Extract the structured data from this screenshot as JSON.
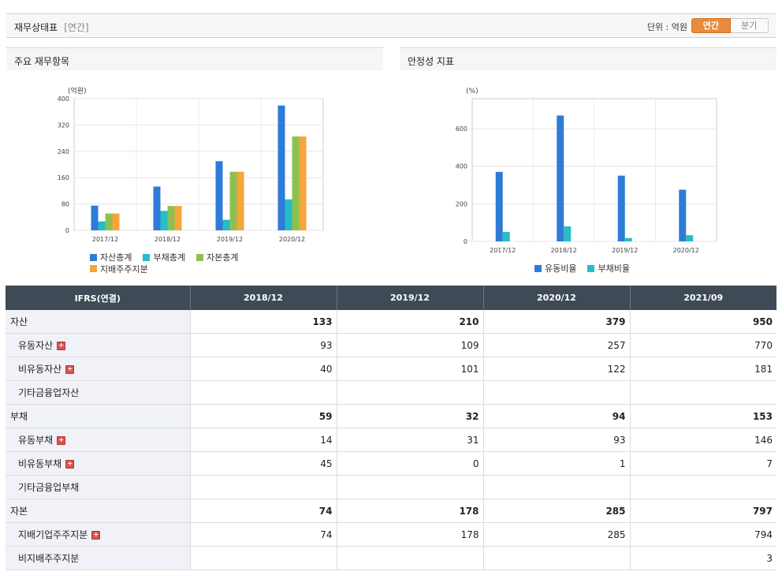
{
  "header": {
    "title": "재무상태표",
    "subtitle": "[연간]",
    "unit_label": "단위 : 억원",
    "toggle_annual": "연간",
    "toggle_quarter": "분기"
  },
  "panels": {
    "left_title": "주요 재무항목",
    "right_title": "안정성 지표"
  },
  "colors": {
    "blue": "#2f7bd8",
    "teal": "#26bcc8",
    "green": "#8cc152",
    "orange": "#f5a63a"
  },
  "chart_data": [
    {
      "type": "bar",
      "title": "",
      "ylabel": "(억원)",
      "categories": [
        "2017/12",
        "2018/12",
        "2019/12",
        "2020/12"
      ],
      "yticks": [
        0,
        80,
        160,
        240,
        320,
        400
      ],
      "ylim": [
        0,
        400
      ],
      "series": [
        {
          "name": "자산총계",
          "color": "#2f7bd8",
          "values": [
            75,
            133,
            210,
            379
          ]
        },
        {
          "name": "부채총계",
          "color": "#26bcc8",
          "values": [
            27,
            59,
            32,
            94
          ]
        },
        {
          "name": "자본총계",
          "color": "#8cc152",
          "values": [
            51,
            74,
            178,
            285
          ]
        },
        {
          "name": "지배주주지분",
          "color": "#f5a63a",
          "values": [
            51,
            74,
            178,
            285
          ]
        }
      ],
      "legend": "bottom"
    },
    {
      "type": "bar",
      "title": "",
      "ylabel": "(%)",
      "categories": [
        "2017/12",
        "2018/12",
        "2019/12",
        "2020/12"
      ],
      "yticks": [
        0,
        200,
        400,
        600
      ],
      "ylim": [
        0,
        760
      ],
      "series": [
        {
          "name": "유동비율",
          "color": "#2f7bd8",
          "values": [
            370,
            670,
            350,
            275
          ]
        },
        {
          "name": "부채비율",
          "color": "#26bcc8",
          "values": [
            50,
            80,
            18,
            33
          ]
        }
      ],
      "legend": "bottom"
    }
  ],
  "table": {
    "corner": "IFRS(연결)",
    "columns": [
      "2018/12",
      "2019/12",
      "2020/12",
      "2021/09"
    ],
    "rows": [
      {
        "label": "자산",
        "level": 0,
        "bold": true,
        "plus": false,
        "values": [
          "133",
          "210",
          "379",
          "950"
        ]
      },
      {
        "label": "유동자산",
        "level": 1,
        "bold": false,
        "plus": true,
        "values": [
          "93",
          "109",
          "257",
          "770"
        ]
      },
      {
        "label": "비유동자산",
        "level": 1,
        "bold": false,
        "plus": true,
        "values": [
          "40",
          "101",
          "122",
          "181"
        ]
      },
      {
        "label": "기타금융업자산",
        "level": 1,
        "bold": false,
        "plus": false,
        "values": [
          "",
          "",
          "",
          ""
        ]
      },
      {
        "label": "부채",
        "level": 0,
        "bold": true,
        "plus": false,
        "values": [
          "59",
          "32",
          "94",
          "153"
        ]
      },
      {
        "label": "유동부채",
        "level": 1,
        "bold": false,
        "plus": true,
        "values": [
          "14",
          "31",
          "93",
          "146"
        ]
      },
      {
        "label": "비유동부채",
        "level": 1,
        "bold": false,
        "plus": true,
        "values": [
          "45",
          "0",
          "1",
          "7"
        ]
      },
      {
        "label": "기타금융업부채",
        "level": 1,
        "bold": false,
        "plus": false,
        "values": [
          "",
          "",
          "",
          ""
        ]
      },
      {
        "label": "자본",
        "level": 0,
        "bold": true,
        "plus": false,
        "values": [
          "74",
          "178",
          "285",
          "797"
        ]
      },
      {
        "label": "지배기업주주지분",
        "level": 1,
        "bold": false,
        "plus": true,
        "values": [
          "74",
          "178",
          "285",
          "794"
        ]
      },
      {
        "label": "비지배주주지분",
        "level": 1,
        "bold": false,
        "plus": false,
        "values": [
          "",
          "",
          "",
          "3"
        ]
      }
    ]
  }
}
